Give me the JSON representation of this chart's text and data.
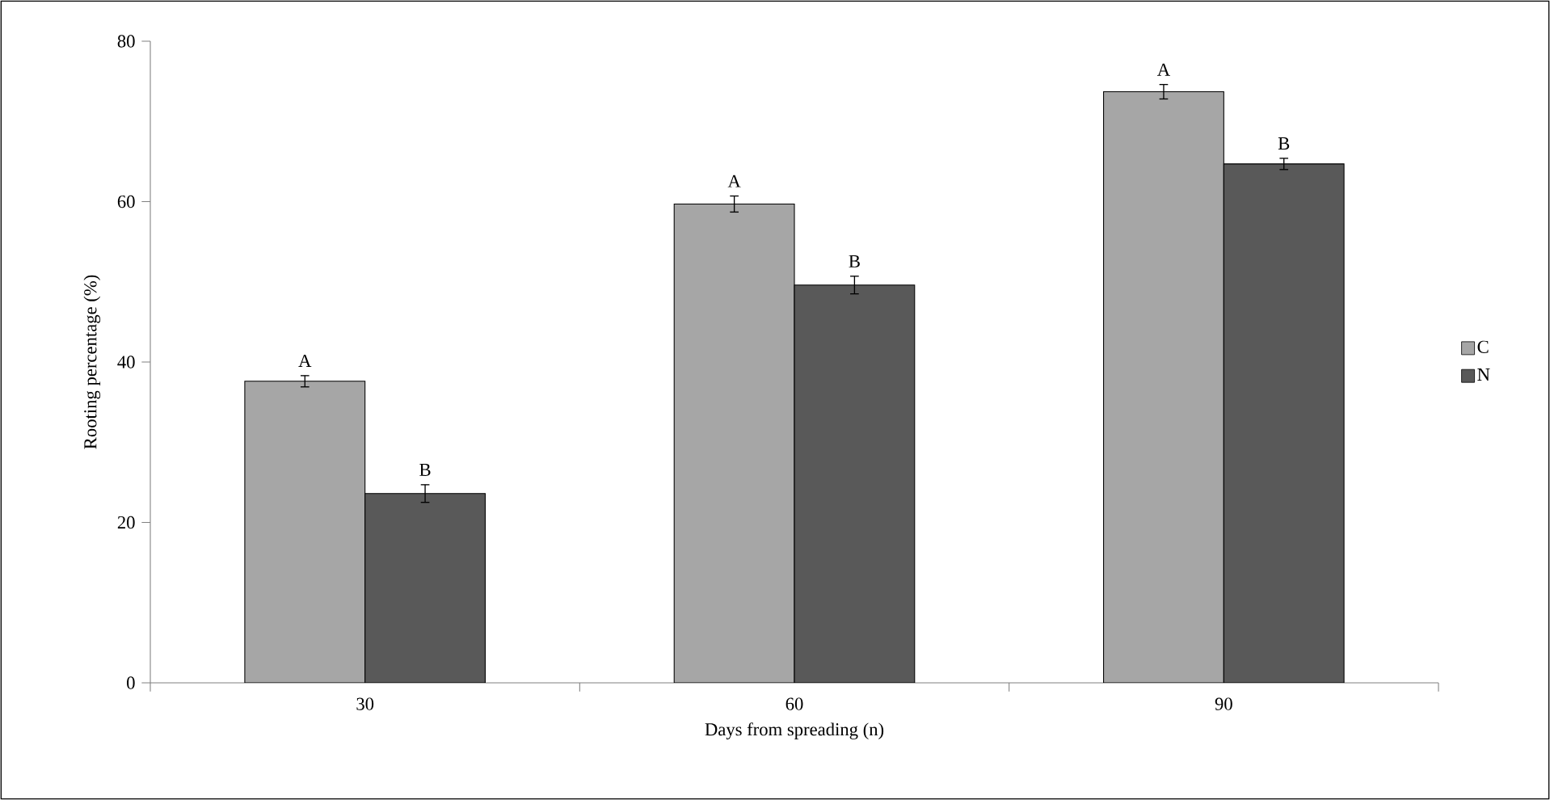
{
  "chart_data": {
    "type": "bar",
    "xlabel": "Days from spreading (n)",
    "ylabel": "Rooting percentage (%)",
    "categories": [
      "30",
      "60",
      "90"
    ],
    "series": [
      {
        "name": "C",
        "color": "#a6a6a6",
        "values": [
          37.6,
          59.7,
          73.7
        ],
        "errors": [
          0.7,
          1.0,
          0.9
        ]
      },
      {
        "name": "N",
        "color": "#595959",
        "values": [
          23.6,
          49.6,
          64.7
        ],
        "errors": [
          1.1,
          1.1,
          0.7
        ]
      }
    ],
    "ylim": [
      0,
      80
    ],
    "yticks": [
      0,
      20,
      40,
      60,
      80
    ],
    "grid": false,
    "legend": "right",
    "annotations": [
      "A",
      "B",
      "A",
      "B",
      "A",
      "B"
    ]
  }
}
